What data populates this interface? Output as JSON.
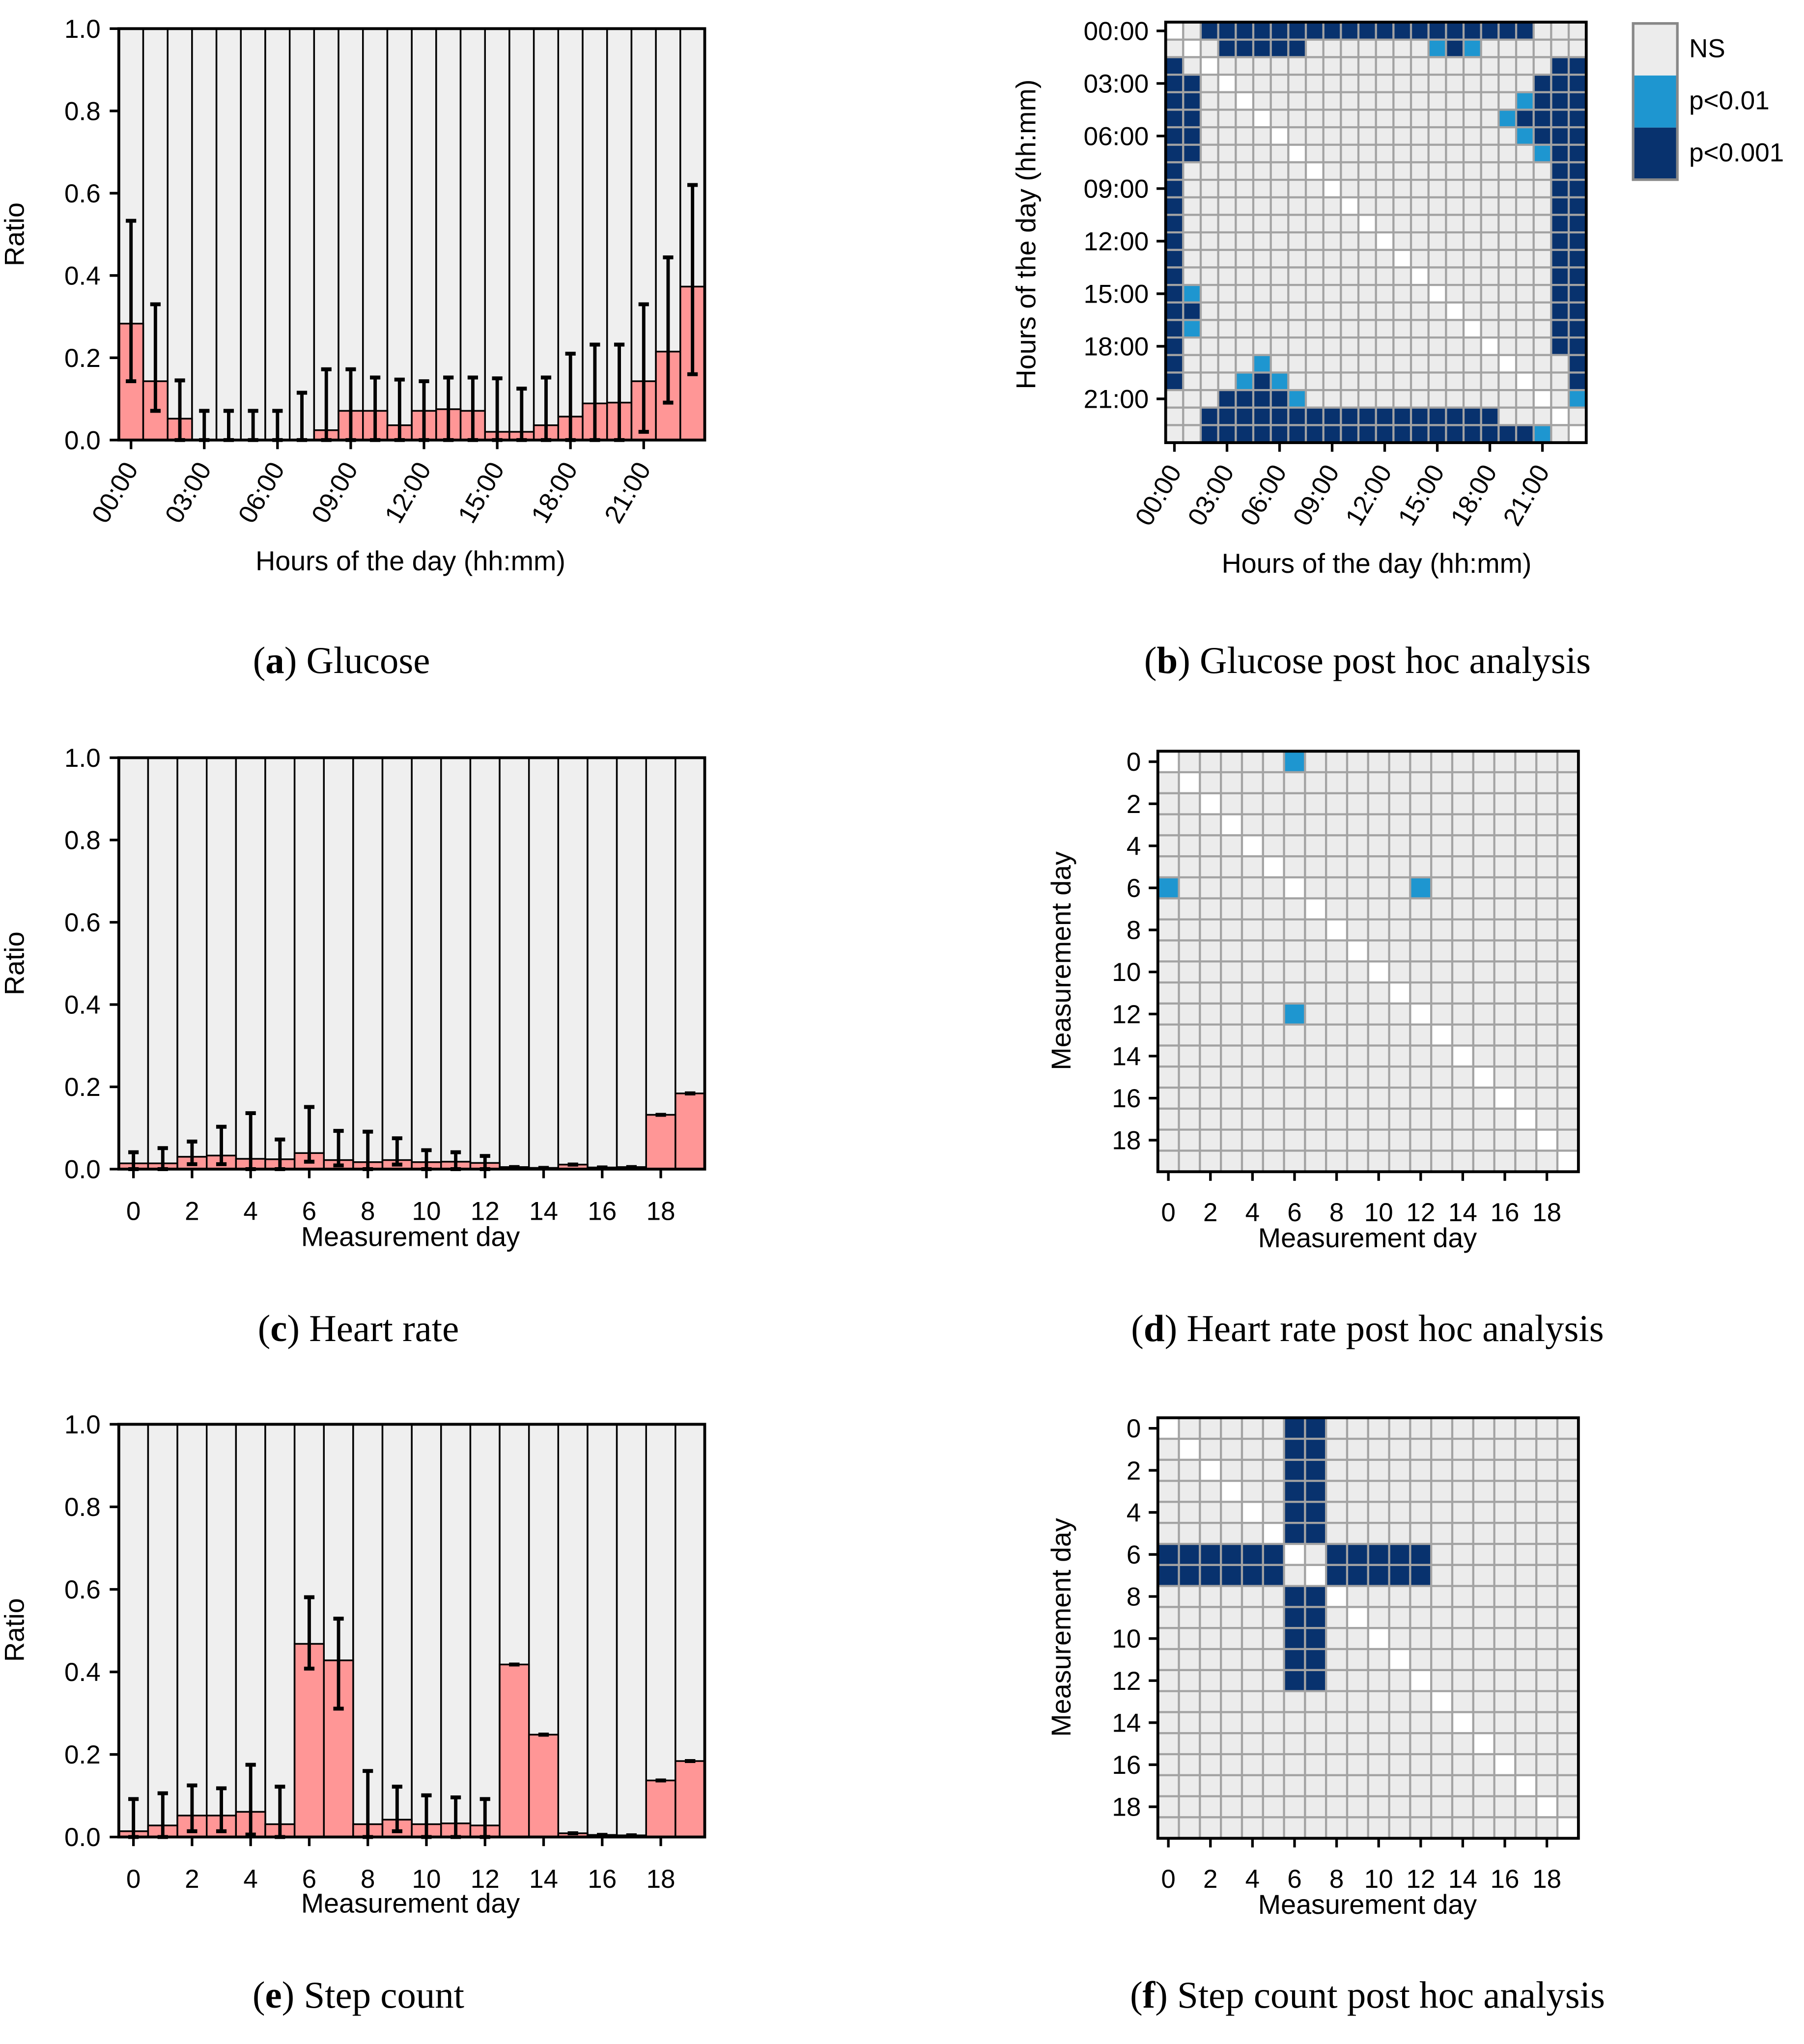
{
  "colors": {
    "bar_fill": "#ff9696",
    "bar_background": "#efefef",
    "ns": "#ececec",
    "diagonal": "#ffffff",
    "p01": "#1e96d0",
    "p001": "#08326e",
    "grid": "#a3a3a3"
  },
  "chart_data": [
    {
      "id": "a",
      "type": "bar",
      "caption": {
        "letter": "a",
        "text": "Glucose"
      },
      "xlabel": "Hours of the day (hh:mm)",
      "ylabel": "Ratio",
      "ylim": [
        0,
        1
      ],
      "yticks": [
        "0.0",
        "0.2",
        "0.4",
        "0.6",
        "0.8",
        "1.0"
      ],
      "xtick_values": [
        0,
        3,
        6,
        9,
        12,
        15,
        18,
        21
      ],
      "xtick_labels": [
        "00:00",
        "03:00",
        "06:00",
        "09:00",
        "12:00",
        "15:00",
        "18:00",
        "21:00"
      ],
      "categories": [
        0,
        1,
        2,
        3,
        4,
        5,
        6,
        7,
        8,
        9,
        10,
        11,
        12,
        13,
        14,
        15,
        16,
        17,
        18,
        19,
        20,
        21,
        22,
        23
      ],
      "values": [
        0.283,
        0.143,
        0.052,
        0,
        0,
        0,
        0,
        0,
        0.024,
        0.071,
        0.071,
        0.036,
        0.071,
        0.075,
        0.071,
        0.02,
        0.02,
        0.036,
        0.057,
        0.089,
        0.091,
        0.143,
        0.215,
        0.373
      ],
      "err_low": [
        0.143,
        0.071,
        0,
        0,
        0,
        0,
        0,
        0,
        0,
        0,
        0,
        0,
        0,
        0,
        0,
        0,
        0,
        0,
        0,
        0,
        0,
        0.02,
        0.091,
        0.16
      ],
      "err_high": [
        0.533,
        0.33,
        0.145,
        0.071,
        0.071,
        0.071,
        0.071,
        0.115,
        0.172,
        0.172,
        0.152,
        0.147,
        0.143,
        0.152,
        0.152,
        0.15,
        0.125,
        0.152,
        0.21,
        0.232,
        0.232,
        0.33,
        0.444,
        0.62
      ]
    },
    {
      "id": "b",
      "type": "heatmap",
      "caption": {
        "letter": "b",
        "text": "Glucose post hoc analysis"
      },
      "xlabel": "Hours of the day (hh:mm)",
      "ylabel": "Hours of the day (hh:mm)",
      "tick_values": [
        0,
        3,
        6,
        9,
        12,
        15,
        18,
        21
      ],
      "tick_labels": [
        "00:00",
        "03:00",
        "06:00",
        "09:00",
        "12:00",
        "15:00",
        "18:00",
        "21:00"
      ],
      "rotate_xticks": true,
      "legend": [
        {
          "key": ".",
          "label": "NS"
        },
        {
          "key": "b",
          "label": "p<0.01"
        },
        {
          "key": "D",
          "label": "p<0.001"
        }
      ],
      "cell_key": {
        ".": "NS",
        "w": "self",
        "b": "p<0.01",
        "D": "p<0.001"
      },
      "matrix": [
        "w.DDDDDDDDDDDDDDDDDDD...",
        ".w.DDDDD.......bDb......",
        "D.w...................DD",
        "DD.w.................DDD",
        "DD..w...............bDDD",
        "DD...w.............bDDDD",
        "DD....w.............bDDD",
        "DD.....w.............bDD",
        "D.......w.............DD",
        "D........w............DD",
        "D.........w...........DD",
        "D..........w..........DD",
        "D...........w.........DD",
        "D............w........DD",
        "D.............w.......DD",
        "Db.............w......DD",
        "DD..............w.....DD",
        "Db...............w....DD",
        "D.................w...DD",
        "D....b.............w...D",
        "D...bDb.............w..D",
        "...DDDDb.............w.b",
        "..DDDDDDDDDDDDDDDDD...w.",
        "..DDDDDDDDDDDDDDDDDDDb.w"
      ]
    },
    {
      "id": "c",
      "type": "bar",
      "caption": {
        "letter": "c",
        "text": "Heart rate"
      },
      "xlabel": "Measurement day",
      "ylabel": "Ratio",
      "ylim": [
        0,
        1
      ],
      "yticks": [
        "0.0",
        "0.2",
        "0.4",
        "0.6",
        "0.8",
        "1.0"
      ],
      "xtick_values": [
        0,
        2,
        4,
        6,
        8,
        10,
        12,
        14,
        16,
        18
      ],
      "xtick_labels": [
        "0",
        "2",
        "4",
        "6",
        "8",
        "10",
        "12",
        "14",
        "16",
        "18"
      ],
      "categories": [
        0,
        1,
        2,
        3,
        4,
        5,
        6,
        7,
        8,
        9,
        10,
        11,
        12,
        13,
        14,
        15,
        16,
        17,
        18,
        19
      ],
      "values": [
        0.014,
        0.014,
        0.03,
        0.033,
        0.025,
        0.024,
        0.039,
        0.022,
        0.017,
        0.022,
        0.017,
        0.018,
        0.015,
        0.005,
        0.003,
        0.011,
        0.004,
        0.005,
        0.132,
        0.184
      ],
      "err_low": [
        0,
        0,
        0.012,
        0.012,
        0,
        0,
        0.018,
        0.009,
        0,
        0.011,
        0,
        0,
        0,
        0.005,
        0.003,
        0.011,
        0.004,
        0.005,
        0.132,
        0.184
      ],
      "err_high": [
        0.041,
        0.051,
        0.067,
        0.103,
        0.136,
        0.072,
        0.151,
        0.093,
        0.091,
        0.075,
        0.046,
        0.041,
        0.032,
        0.005,
        0.003,
        0.011,
        0.004,
        0.005,
        0.132,
        0.184
      ]
    },
    {
      "id": "d",
      "type": "heatmap",
      "caption": {
        "letter": "d",
        "text": "Heart rate post hoc analysis"
      },
      "xlabel": "Measurement day",
      "ylabel": "Measurement day",
      "tick_values": [
        0,
        2,
        4,
        6,
        8,
        10,
        12,
        14,
        16,
        18
      ],
      "tick_labels": [
        "0",
        "2",
        "4",
        "6",
        "8",
        "10",
        "12",
        "14",
        "16",
        "18"
      ],
      "rotate_xticks": false,
      "cell_key": {
        ".": "NS",
        "w": "self",
        "b": "p<0.01",
        "D": "p<0.001"
      },
      "matrix": [
        "w.....b.............",
        ".w..................",
        "..w.................",
        "...w................",
        "....w...............",
        ".....w..............",
        "b.....w.....b.......",
        ".......w............",
        "........w...........",
        ".........w..........",
        "..........w.........",
        "...........w........",
        "......b.....w.......",
        ".............w......",
        "..............w.....",
        "...............w....",
        "................w...",
        ".................w..",
        "..................w.",
        "...................w"
      ]
    },
    {
      "id": "e",
      "type": "bar",
      "caption": {
        "letter": "e",
        "text": "Step count"
      },
      "xlabel": "Measurement day",
      "ylabel": "Ratio",
      "ylim": [
        0,
        1
      ],
      "yticks": [
        "0.0",
        "0.2",
        "0.4",
        "0.6",
        "0.8",
        "1.0"
      ],
      "xtick_values": [
        0,
        2,
        4,
        6,
        8,
        10,
        12,
        14,
        16,
        18
      ],
      "xtick_labels": [
        "0",
        "2",
        "4",
        "6",
        "8",
        "10",
        "12",
        "14",
        "16",
        "18"
      ],
      "categories": [
        0,
        1,
        2,
        3,
        4,
        5,
        6,
        7,
        8,
        9,
        10,
        11,
        12,
        13,
        14,
        15,
        16,
        17,
        18,
        19
      ],
      "values": [
        0.014,
        0.028,
        0.052,
        0.052,
        0.061,
        0.031,
        0.468,
        0.428,
        0.031,
        0.042,
        0.031,
        0.033,
        0.028,
        0.418,
        0.248,
        0.009,
        0.005,
        0.004,
        0.137,
        0.184
      ],
      "err_low": [
        0,
        0,
        0.014,
        0.014,
        0.006,
        0,
        0.408,
        0.311,
        0,
        0.014,
        0,
        0,
        0,
        0.418,
        0.248,
        0.009,
        0.005,
        0.004,
        0.137,
        0.184
      ],
      "err_high": [
        0.092,
        0.106,
        0.125,
        0.118,
        0.175,
        0.122,
        0.581,
        0.529,
        0.16,
        0.122,
        0.101,
        0.096,
        0.092,
        0.418,
        0.248,
        0.009,
        0.005,
        0.004,
        0.137,
        0.184
      ]
    },
    {
      "id": "f",
      "type": "heatmap",
      "caption": {
        "letter": "f",
        "text": "Step count post hoc analysis"
      },
      "xlabel": "Measurement day",
      "ylabel": "Measurement day",
      "tick_values": [
        0,
        2,
        4,
        6,
        8,
        10,
        12,
        14,
        16,
        18
      ],
      "tick_labels": [
        "0",
        "2",
        "4",
        "6",
        "8",
        "10",
        "12",
        "14",
        "16",
        "18"
      ],
      "rotate_xticks": false,
      "cell_key": {
        ".": "NS",
        "w": "self",
        "b": "p<0.01",
        "D": "p<0.001"
      },
      "matrix": [
        "w.....DD............",
        ".w....DD............",
        "..w...DD............",
        "...w..DD............",
        "....w.DD............",
        ".....wDD............",
        "DDDDDDw.DDDDD.......",
        "DDDDDD.wDDDDD.......",
        "......DDw...........",
        "......DD.w..........",
        "......DD..w.........",
        "......DD...w........",
        "......DD....w.......",
        ".............w......",
        "..............w.....",
        "...............w....",
        "................w...",
        ".................w..",
        "..................w.",
        "...................w"
      ]
    }
  ]
}
